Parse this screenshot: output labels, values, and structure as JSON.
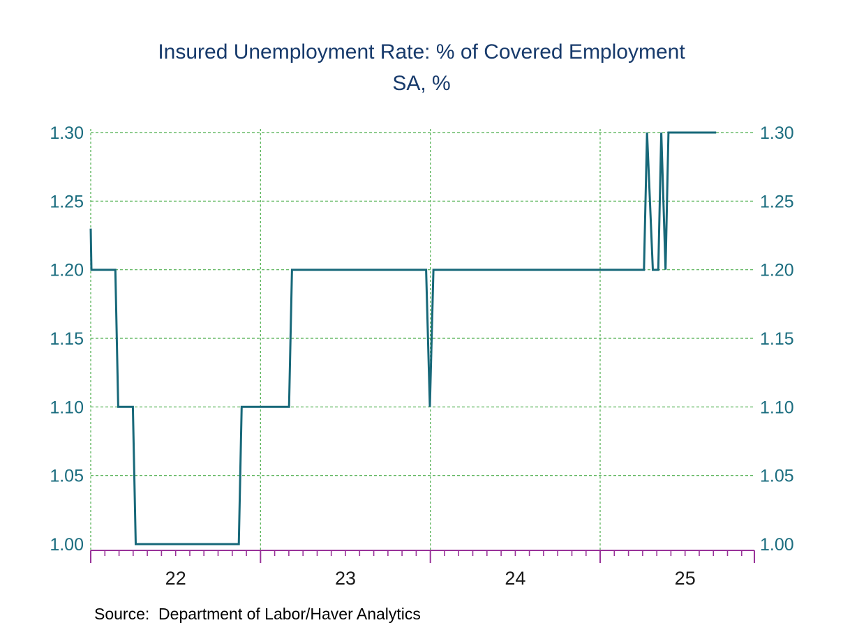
{
  "title": {
    "line1": "Insured Unemployment Rate: % of Covered Employment",
    "line2": "SA, %"
  },
  "source": "Source:  Department of Labor/Haver Analytics",
  "colors": {
    "title": "#173a6b",
    "y_axis_labels": "#1b6d7f",
    "x_axis_labels": "#1a1a1a",
    "grid": "#4cae4c",
    "x_axis": "#993399",
    "line": "#176879",
    "source": "#000000",
    "background": "#ffffff"
  },
  "chart_data": {
    "type": "line",
    "title": "Insured Unemployment Rate: % of Covered Employment",
    "subtitle": "SA, %",
    "xlabel": "",
    "ylabel": "",
    "x_unit": "two-digit year (weekly data)",
    "xlim": [
      22.0,
      25.908
    ],
    "ylim": [
      1.0,
      1.3
    ],
    "grid": true,
    "legend": "none",
    "y_ticks": [
      1.0,
      1.05,
      1.1,
      1.15,
      1.2,
      1.25,
      1.3
    ],
    "y_tick_labels": [
      "1.00",
      "1.05",
      "1.10",
      "1.15",
      "1.20",
      "1.25",
      "1.30"
    ],
    "x_tick_labels": [
      "22",
      "23",
      "24",
      "25"
    ],
    "x_tick_centers": [
      22.5,
      23.5,
      24.5,
      25.5
    ],
    "year_gridlines": [
      22,
      23,
      24,
      25
    ],
    "minor_tick_step_years": 0.083333,
    "series": [
      {
        "name": "Insured Unemployment Rate, SA, %",
        "points": [
          [
            22.0,
            1.23
          ],
          [
            22.004,
            1.2
          ],
          [
            22.145,
            1.2
          ],
          [
            22.162,
            1.1
          ],
          [
            22.248,
            1.1
          ],
          [
            22.265,
            1.0
          ],
          [
            22.872,
            1.0
          ],
          [
            22.889,
            1.1
          ],
          [
            23.168,
            1.1
          ],
          [
            23.185,
            1.2
          ],
          [
            23.975,
            1.2
          ],
          [
            23.997,
            1.1
          ],
          [
            24.018,
            1.2
          ],
          [
            25.258,
            1.2
          ],
          [
            25.276,
            1.3
          ],
          [
            25.31,
            1.2
          ],
          [
            25.342,
            1.2
          ],
          [
            25.36,
            1.3
          ],
          [
            25.385,
            1.2
          ],
          [
            25.402,
            1.3
          ],
          [
            25.683,
            1.3
          ]
        ]
      }
    ]
  }
}
